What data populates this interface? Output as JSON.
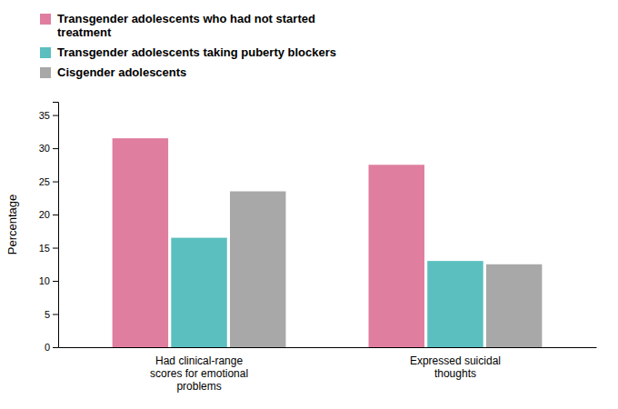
{
  "chart_data": {
    "type": "bar",
    "categories": [
      "Had clinical-range\nscores for emotional\nproblems",
      "Expressed suicidal\nthoughts"
    ],
    "series": [
      {
        "name": "Transgender adolescents who had not started\ntreatment",
        "color": "#E07EA0",
        "values": [
          31.5,
          27.5
        ]
      },
      {
        "name": "Transgender adolescents taking puberty blockers",
        "color": "#5BBFBF",
        "values": [
          16.5,
          13.0
        ]
      },
      {
        "name": "Cisgender adolescents",
        "color": "#A8A8A8",
        "values": [
          23.5,
          12.5
        ]
      }
    ],
    "y_label": "Percentage",
    "ylim": [
      0,
      37
    ],
    "yticks": [
      0,
      5,
      10,
      15,
      20,
      25,
      30,
      35
    ],
    "grid": false,
    "legend": "upper left"
  }
}
